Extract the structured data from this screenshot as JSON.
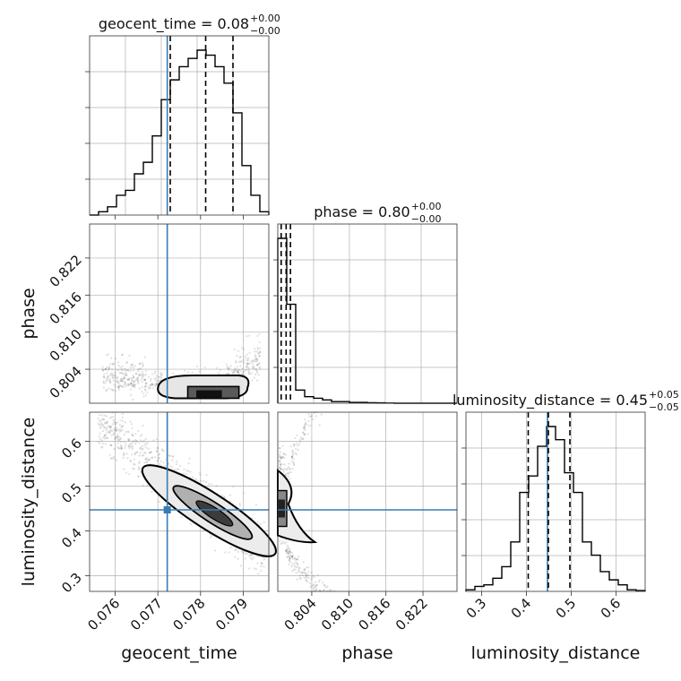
{
  "figure": {
    "type": "corner-plot",
    "colors": {
      "truth": "#3a7bb3",
      "hist": "#000000",
      "grid": "#b0b0b0",
      "points": "#555555"
    }
  },
  "chart_data": [
    {
      "panel": "hist-geocent_time",
      "type": "histogram",
      "title_label": "geocent_time",
      "title_value": "0.08",
      "title_err_plus": "+0.00",
      "title_err_minus": "−0.00",
      "xlim": [
        0.0754,
        0.0796
      ],
      "bin_edges": [
        0.0754,
        0.07561,
        0.07582,
        0.07603,
        0.07624,
        0.07645,
        0.07666,
        0.07687,
        0.07708,
        0.07729,
        0.0775,
        0.07771,
        0.07792,
        0.07813,
        0.07834,
        0.07855,
        0.07876,
        0.07897,
        0.07918,
        0.07939,
        0.0796
      ],
      "counts": [
        0.0,
        0.02,
        0.05,
        0.12,
        0.15,
        0.25,
        0.32,
        0.48,
        0.7,
        0.82,
        0.9,
        0.95,
        1.0,
        0.97,
        0.9,
        0.8,
        0.62,
        0.3,
        0.12,
        0.02
      ],
      "quantiles": [
        0.07729,
        0.07812,
        0.07876
      ],
      "truth": 0.07722
    },
    {
      "panel": "scatter-geocent_time-phase",
      "type": "scatter-contour",
      "xlabel": "",
      "ylabel": "phase",
      "xlim": [
        0.0754,
        0.0796
      ],
      "ylim": [
        0.7985,
        0.8275
      ],
      "yticks": [
        "0.804",
        "0.810",
        "0.816",
        "0.822"
      ],
      "ytick_values": [
        0.804,
        0.81,
        0.816,
        0.822
      ],
      "truth_x": 0.07722,
      "contour_center": [
        0.0782,
        0.8012
      ],
      "contour_spread": [
        0.0008,
        0.0008
      ]
    },
    {
      "panel": "hist-phase",
      "type": "histogram",
      "title_label": "phase",
      "title_value": "0.80",
      "title_err_plus": "+0.00",
      "title_err_minus": "−0.00",
      "xlim": [
        0.7985,
        0.8275
      ],
      "bin_edges": [
        0.7985,
        0.79995,
        0.8014,
        0.80285,
        0.8043,
        0.80575,
        0.8072,
        0.80865,
        0.8101,
        0.81155,
        0.813,
        0.81445,
        0.8159,
        0.81735,
        0.8188,
        0.82025,
        0.8217,
        0.82315,
        0.8246,
        0.82605,
        0.8275
      ],
      "counts": [
        1.0,
        0.6,
        0.08,
        0.04,
        0.03,
        0.02,
        0.01,
        0.01,
        0.005,
        0.005,
        0.003,
        0.002,
        0.001,
        0,
        0,
        0,
        0,
        0,
        0,
        0
      ],
      "quantiles": [
        0.79905,
        0.79985,
        0.80055
      ],
      "truth": null
    },
    {
      "panel": "scatter-geocent_time-luminosity_distance",
      "type": "scatter-contour",
      "xlabel": "geocent_time",
      "ylabel": "luminosity_distance",
      "xlim": [
        0.0754,
        0.0796
      ],
      "ylim": [
        0.265,
        0.665
      ],
      "xticks": [
        "0.076",
        "0.077",
        "0.078",
        "0.079"
      ],
      "xtick_values": [
        0.076,
        0.077,
        0.078,
        0.079
      ],
      "yticks": [
        "0.3",
        "0.4",
        "0.5",
        "0.6"
      ],
      "ytick_values": [
        0.3,
        0.4,
        0.5,
        0.6
      ],
      "truth_x": 0.07722,
      "truth_y": 0.447
    },
    {
      "panel": "scatter-phase-luminosity_distance",
      "type": "scatter-contour",
      "xlabel": "phase",
      "ylabel": "",
      "xlim": [
        0.7985,
        0.8275
      ],
      "ylim": [
        0.265,
        0.665
      ],
      "xticks": [
        "0.804",
        "0.810",
        "0.816",
        "0.822"
      ],
      "xtick_values": [
        0.804,
        0.81,
        0.816,
        0.822
      ],
      "truth_y": 0.447
    },
    {
      "panel": "hist-luminosity_distance",
      "type": "histogram",
      "title_label": "luminosity_distance",
      "title_value": "0.45",
      "title_err_plus": "+0.05",
      "title_err_minus": "−0.05",
      "xlabel": "luminosity_distance",
      "xlim": [
        0.265,
        0.665
      ],
      "xticks": [
        "0.3",
        "0.4",
        "0.5",
        "0.6"
      ],
      "xtick_values": [
        0.3,
        0.4,
        0.5,
        0.6
      ],
      "bin_edges": [
        0.265,
        0.285,
        0.305,
        0.325,
        0.345,
        0.365,
        0.385,
        0.405,
        0.425,
        0.445,
        0.465,
        0.485,
        0.505,
        0.525,
        0.545,
        0.565,
        0.585,
        0.605,
        0.625,
        0.645,
        0.665
      ],
      "counts": [
        0.01,
        0.03,
        0.04,
        0.08,
        0.15,
        0.3,
        0.6,
        0.7,
        0.88,
        1.0,
        0.92,
        0.72,
        0.6,
        0.3,
        0.22,
        0.12,
        0.07,
        0.04,
        0.01,
        0.005
      ],
      "quantiles": [
        0.404,
        0.449,
        0.497
      ],
      "truth": 0.447
    }
  ]
}
